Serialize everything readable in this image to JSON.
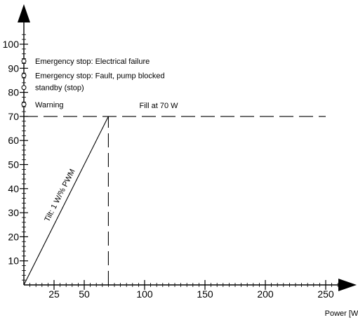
{
  "chart_data": {
    "type": "line",
    "title": "",
    "xlabel": "Power [W]",
    "ylabel": "",
    "xlim": [
      0,
      260
    ],
    "ylim": [
      0,
      110
    ],
    "x_ticks": [
      25,
      50,
      100,
      150,
      200,
      250
    ],
    "y_ticks": [
      10,
      20,
      30,
      40,
      50,
      60,
      70,
      80,
      90,
      100
    ],
    "grid": false,
    "legend": "none",
    "series": [
      {
        "style": "solid",
        "points": [
          [
            0,
            0
          ],
          [
            70,
            70
          ]
        ]
      },
      {
        "style": "dashed",
        "points": [
          [
            0,
            70
          ],
          [
            250,
            70
          ]
        ]
      },
      {
        "style": "dashed",
        "points": [
          [
            70,
            0
          ],
          [
            70,
            70
          ]
        ]
      }
    ],
    "markers": [
      {
        "y": 93,
        "label": "Emergency stop: Electrical failure"
      },
      {
        "y": 87,
        "label": "Emergency stop: Fault, pump blocked"
      },
      {
        "y": 82,
        "label": "standby (stop)"
      },
      {
        "y": 75,
        "label": "Warning"
      }
    ],
    "annotations": {
      "fill": "Fill at 70 W",
      "tilt": "Tilt: 1 W/% PWM"
    }
  }
}
